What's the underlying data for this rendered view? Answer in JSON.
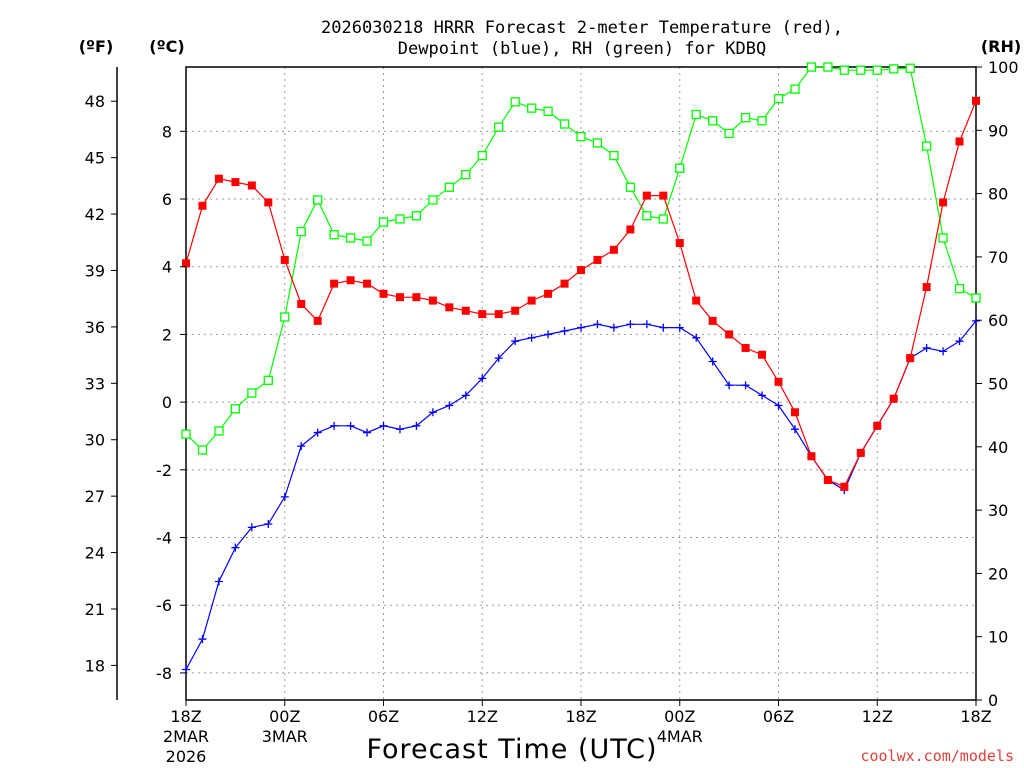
{
  "chart_data": {
    "type": "line",
    "title": "2026030218 HRRR Forecast 2-meter Temperature (red),",
    "subtitle": "Dewpoint (blue), RH (green) for KDBQ",
    "xlabel": "Forecast Time (UTC)",
    "credit": "coolwx.com/models",
    "left_unit_label": "(ºF)",
    "celsius_unit_label": "(ºC)",
    "right_unit_label": "(RH)",
    "x": [
      18,
      19,
      20,
      21,
      22,
      23,
      24,
      25,
      26,
      27,
      28,
      29,
      30,
      31,
      32,
      33,
      34,
      35,
      36,
      37,
      38,
      39,
      40,
      41,
      42,
      43,
      44,
      45,
      46,
      47,
      48,
      49,
      50,
      51,
      52,
      53,
      54,
      55,
      56,
      57,
      58,
      59,
      60,
      61,
      62,
      63,
      64,
      65,
      66
    ],
    "xlim": [
      18,
      66
    ],
    "ylim_celsius": [
      -8.8,
      9.9
    ],
    "ylim_rh": [
      0,
      100
    ],
    "x_ticks": [
      {
        "x": 18,
        "label": "18Z",
        "sub1": "2MAR",
        "sub2": "2026"
      },
      {
        "x": 24,
        "label": "00Z",
        "sub1": "3MAR",
        "sub2": ""
      },
      {
        "x": 30,
        "label": "06Z",
        "sub1": "",
        "sub2": ""
      },
      {
        "x": 36,
        "label": "12Z",
        "sub1": "",
        "sub2": ""
      },
      {
        "x": 42,
        "label": "18Z",
        "sub1": "",
        "sub2": ""
      },
      {
        "x": 48,
        "label": "00Z",
        "sub1": "4MAR",
        "sub2": ""
      },
      {
        "x": 54,
        "label": "06Z",
        "sub1": "",
        "sub2": ""
      },
      {
        "x": 60,
        "label": "12Z",
        "sub1": "",
        "sub2": ""
      },
      {
        "x": 66,
        "label": "18Z",
        "sub1": "",
        "sub2": ""
      }
    ],
    "celsius_ticks": [
      "-8",
      "-6",
      "-4",
      "-2",
      "0",
      "2",
      "4",
      "6",
      "8"
    ],
    "fahrenheit_ticks": [
      "18",
      "21",
      "24",
      "27",
      "30",
      "33",
      "36",
      "39",
      "42",
      "45",
      "48"
    ],
    "rh_ticks": [
      "0",
      "10",
      "20",
      "30",
      "40",
      "50",
      "60",
      "70",
      "80",
      "90",
      "100"
    ],
    "series": [
      {
        "name": "2-meter Temperature",
        "unit": "C",
        "color": "#ff0000",
        "marker": "filled-square",
        "values": [
          4.1,
          5.8,
          6.6,
          6.5,
          6.4,
          5.9,
          4.2,
          2.9,
          2.4,
          3.5,
          3.6,
          3.5,
          3.2,
          3.1,
          3.1,
          3.0,
          2.8,
          2.7,
          2.6,
          2.6,
          2.7,
          3.0,
          3.2,
          3.5,
          3.9,
          4.2,
          4.5,
          5.1,
          6.1,
          6.1,
          4.7,
          3.0,
          2.4,
          2.0,
          1.6,
          1.4,
          0.6,
          -0.3,
          -1.6,
          -2.3,
          -2.5,
          -1.5,
          -0.7,
          0.1,
          1.3,
          3.4,
          5.9,
          7.7,
          8.9
        ]
      },
      {
        "name": "Dewpoint",
        "unit": "C",
        "color": "#0000ff",
        "marker": "plus",
        "values": [
          -7.9,
          -7.0,
          -5.3,
          -4.3,
          -3.7,
          -3.6,
          -2.8,
          -1.3,
          -0.9,
          -0.7,
          -0.7,
          -0.9,
          -0.7,
          -0.8,
          -0.7,
          -0.3,
          -0.1,
          0.2,
          0.7,
          1.3,
          1.8,
          1.9,
          2.0,
          2.1,
          2.2,
          2.3,
          2.2,
          2.3,
          2.3,
          2.2,
          2.2,
          1.9,
          1.2,
          0.5,
          0.5,
          0.2,
          -0.1,
          -0.8,
          -1.6,
          -2.3,
          -2.6,
          -1.5,
          -0.7,
          0.1,
          1.3,
          1.6,
          1.5,
          1.8,
          2.4
        ]
      },
      {
        "name": "Relative Humidity",
        "unit": "%",
        "color": "#00ff00",
        "marker": "open-square",
        "values": [
          42,
          39.5,
          42.5,
          46,
          48.5,
          50.5,
          60.5,
          74,
          79,
          73.5,
          73,
          72.5,
          75.5,
          76,
          76.5,
          79,
          81,
          83,
          86,
          90.5,
          94.5,
          93.5,
          93,
          91,
          89,
          88,
          86,
          81,
          76.5,
          76,
          84,
          92.5,
          91.5,
          89.5,
          92,
          91.5,
          95,
          96.5,
          100,
          100,
          99.5,
          99.5,
          99.5,
          99.7,
          99.8,
          87.5,
          73,
          65,
          63.5
        ]
      }
    ]
  }
}
